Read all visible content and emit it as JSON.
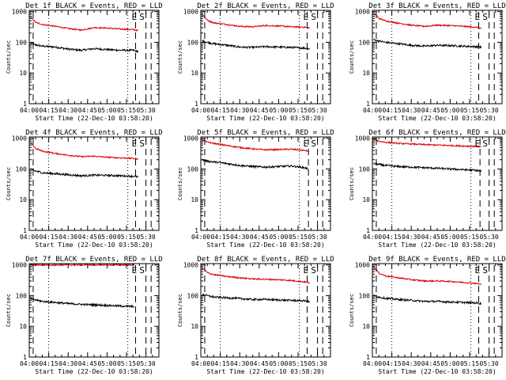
{
  "colors": {
    "events": "#000000",
    "lld": "#e00000",
    "axis": "#000000",
    "background": "#ffffff"
  },
  "shared_axes": {
    "xlabel": "Start Time (22-Dec-10 03:58:20)",
    "ylabel": "Counts/sec",
    "x_tick_labels": [
      "04:00",
      "04:15",
      "04:30",
      "04:45",
      "05:00",
      "05:15",
      "05:30"
    ],
    "x_tick_minutes": [
      240,
      255,
      270,
      285,
      300,
      315,
      330
    ],
    "xlim_minutes": [
      240,
      340
    ],
    "y_tick_labels": [
      "1",
      "10",
      "100",
      "1000"
    ],
    "y_tick_values": [
      1,
      10,
      100,
      1000
    ],
    "ylim": [
      1,
      1100
    ],
    "yscale": "log"
  },
  "chart_data": [
    {
      "type": "line",
      "title": "Det 1f BLACK = Events, RED = LLD",
      "x": [
        241,
        245,
        250,
        260,
        270,
        280,
        290,
        300,
        310,
        320,
        324
      ],
      "series": [
        {
          "values": [
            90,
            82,
            75,
            70,
            60,
            55,
            62,
            58,
            55,
            55,
            50
          ]
        },
        {
          "values": [
            650,
            440,
            380,
            330,
            280,
            250,
            300,
            290,
            270,
            260,
            240
          ]
        }
      ],
      "markers": {
        "E": 321,
        "S": 327,
        "dashed": [
          243,
          322,
          330,
          334
        ],
        "dotted": [
          255,
          316
        ]
      }
    },
    {
      "type": "line",
      "title": "Det 2f BLACK = Events, RED = LLD",
      "x": [
        241,
        245,
        250,
        260,
        270,
        280,
        290,
        300,
        310,
        320,
        324
      ],
      "series": [
        {
          "values": [
            110,
            100,
            90,
            80,
            70,
            68,
            72,
            70,
            68,
            65,
            60
          ]
        },
        {
          "values": [
            800,
            520,
            430,
            380,
            330,
            320,
            350,
            340,
            320,
            310,
            290
          ]
        }
      ],
      "markers": {
        "E": 321,
        "S": 327,
        "dashed": [
          243,
          322,
          330,
          334
        ],
        "dotted": [
          255,
          316
        ]
      }
    },
    {
      "type": "line",
      "title": "Det 3f BLACK = Events, RED = LLD",
      "x": [
        241,
        245,
        250,
        260,
        270,
        280,
        290,
        300,
        310,
        320,
        324
      ],
      "series": [
        {
          "values": [
            120,
            110,
            100,
            90,
            80,
            75,
            80,
            78,
            75,
            72,
            70
          ]
        },
        {
          "values": [
            900,
            600,
            500,
            420,
            360,
            330,
            360,
            350,
            330,
            310,
            280
          ]
        }
      ],
      "markers": {
        "E": 321,
        "S": 327,
        "dashed": [
          243,
          322,
          330,
          334
        ],
        "dotted": [
          255,
          316
        ]
      }
    },
    {
      "type": "line",
      "title": "Det 4f BLACK = Events, RED = LLD",
      "x": [
        241,
        245,
        250,
        260,
        270,
        280,
        290,
        300,
        310,
        320,
        324
      ],
      "series": [
        {
          "values": [
            95,
            85,
            75,
            70,
            65,
            60,
            63,
            62,
            60,
            58,
            55
          ]
        },
        {
          "values": [
            700,
            460,
            380,
            320,
            280,
            250,
            260,
            240,
            230,
            220,
            210
          ]
        }
      ],
      "markers": {
        "E": 321,
        "S": 327,
        "dashed": [
          243,
          322,
          330,
          334
        ],
        "dotted": [
          255,
          316
        ]
      }
    },
    {
      "type": "line",
      "title": "Det 5f BLACK = Events, RED = LLD",
      "x": [
        241,
        245,
        250,
        260,
        270,
        280,
        290,
        300,
        310,
        320,
        323
      ],
      "series": [
        {
          "values": [
            200,
            180,
            170,
            150,
            130,
            120,
            115,
            120,
            125,
            110,
            100
          ]
        },
        {
          "values": [
            900,
            750,
            680,
            580,
            500,
            450,
            420,
            430,
            440,
            400,
            380
          ]
        }
      ],
      "markers": {
        "E": 321,
        "S": 327,
        "dashed": [
          243,
          323,
          330,
          334
        ],
        "dotted": [
          255,
          316
        ]
      }
    },
    {
      "type": "line",
      "title": "Det 6f BLACK = Events, RED = LLD",
      "x": [
        241,
        245,
        250,
        260,
        270,
        280,
        290,
        300,
        310,
        320,
        324
      ],
      "series": [
        {
          "values": [
            150,
            140,
            130,
            120,
            115,
            110,
            105,
            100,
            95,
            90,
            85
          ]
        },
        {
          "values": [
            950,
            800,
            740,
            680,
            650,
            620,
            600,
            580,
            560,
            540,
            520
          ]
        }
      ],
      "markers": {
        "E": 321,
        "S": 327,
        "dashed": [
          243,
          323,
          330,
          334
        ],
        "dotted": [
          255,
          316
        ]
      }
    },
    {
      "type": "line",
      "title": "Det 7f BLACK = Events, RED = LLD",
      "x": [
        241,
        245,
        250,
        260,
        270,
        280,
        290,
        300,
        310,
        318,
        321
      ],
      "series": [
        {
          "values": [
            80,
            72,
            65,
            60,
            55,
            52,
            50,
            48,
            46,
            45,
            44
          ]
        },
        {
          "values": [
            1000,
            1000,
            1000,
            1000,
            1000,
            1000,
            1000,
            1000,
            1000,
            1000,
            1000
          ]
        }
      ],
      "markers": {
        "E": 321,
        "S": 327,
        "dashed": [
          243,
          322,
          330,
          334
        ],
        "dotted": [
          255,
          316
        ]
      }
    },
    {
      "type": "line",
      "title": "Det 8f BLACK = Events, RED = LLD",
      "x": [
        241,
        245,
        250,
        260,
        270,
        280,
        290,
        300,
        310,
        320,
        324
      ],
      "series": [
        {
          "values": [
            110,
            100,
            90,
            85,
            80,
            75,
            75,
            72,
            70,
            68,
            62
          ]
        },
        {
          "values": [
            800,
            560,
            480,
            420,
            380,
            350,
            340,
            330,
            310,
            280,
            260
          ]
        }
      ],
      "markers": {
        "E": 321,
        "S": 327,
        "dashed": [
          243,
          322,
          330,
          334
        ],
        "dotted": [
          255,
          316
        ]
      }
    },
    {
      "type": "line",
      "title": "Det 9f BLACK = Events, RED = LLD",
      "x": [
        241,
        245,
        250,
        260,
        270,
        280,
        290,
        300,
        310,
        320,
        324
      ],
      "series": [
        {
          "values": [
            100,
            90,
            82,
            75,
            70,
            65,
            65,
            62,
            60,
            58,
            55
          ]
        },
        {
          "values": [
            850,
            540,
            440,
            380,
            330,
            300,
            300,
            290,
            270,
            250,
            230
          ]
        }
      ],
      "markers": {
        "E": 321,
        "S": 327,
        "dashed": [
          243,
          322,
          330,
          334
        ],
        "dotted": [
          255,
          316
        ]
      }
    }
  ]
}
